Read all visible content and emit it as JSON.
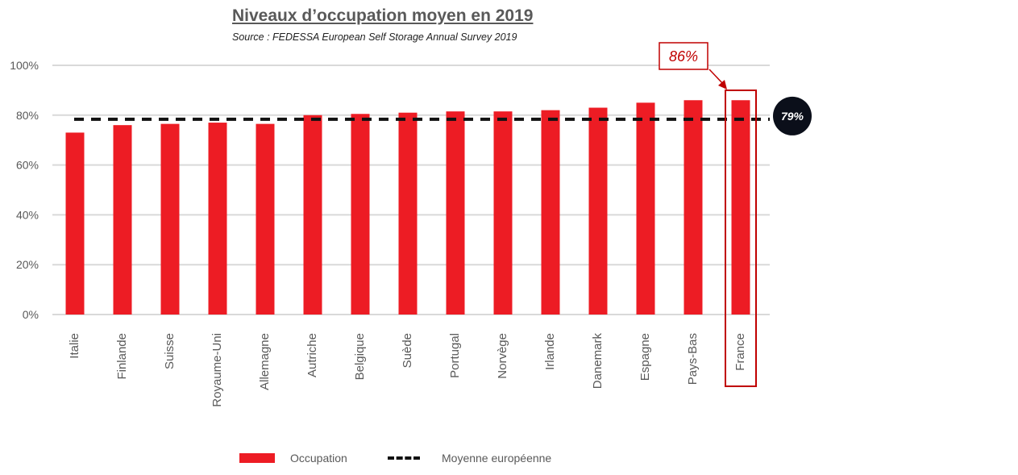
{
  "chart_data": {
    "type": "bar",
    "title": "Niveaux d’occupation moyen en 2019",
    "subtitle": "Source : FEDESSA European Self Storage Annual Survey 2019",
    "categories": [
      "Italie",
      "Finlande",
      "Suisse",
      "Royaume-Uni",
      "Allemagne",
      "Autriche",
      "Belgique",
      "Suède",
      "Portugal",
      "Norvège",
      "Irlande",
      "Danemark",
      "Espagne",
      "Pays-Bas",
      "France"
    ],
    "series": [
      {
        "name": "Occupation",
        "color": "#ed1c24",
        "values": [
          73,
          76,
          76.5,
          77,
          76.5,
          80,
          80.5,
          81,
          81.5,
          81.5,
          82,
          83,
          85,
          86,
          86
        ]
      }
    ],
    "reference_line": {
      "name": "Moyenne européenne",
      "value": 79,
      "label": "79%",
      "style": "dashed",
      "color": "#111111"
    },
    "highlight": {
      "category": "France",
      "label": "86%",
      "color": "#c00000"
    },
    "ylim": [
      0,
      100
    ],
    "yticks": [
      0,
      20,
      40,
      60,
      80,
      100
    ],
    "ytick_labels": [
      "0%",
      "20%",
      "40%",
      "60%",
      "80%",
      "100%"
    ],
    "grid": true,
    "legend_position": "bottom"
  },
  "legend": {
    "occupation": "Occupation",
    "average": "Moyenne européenne"
  }
}
